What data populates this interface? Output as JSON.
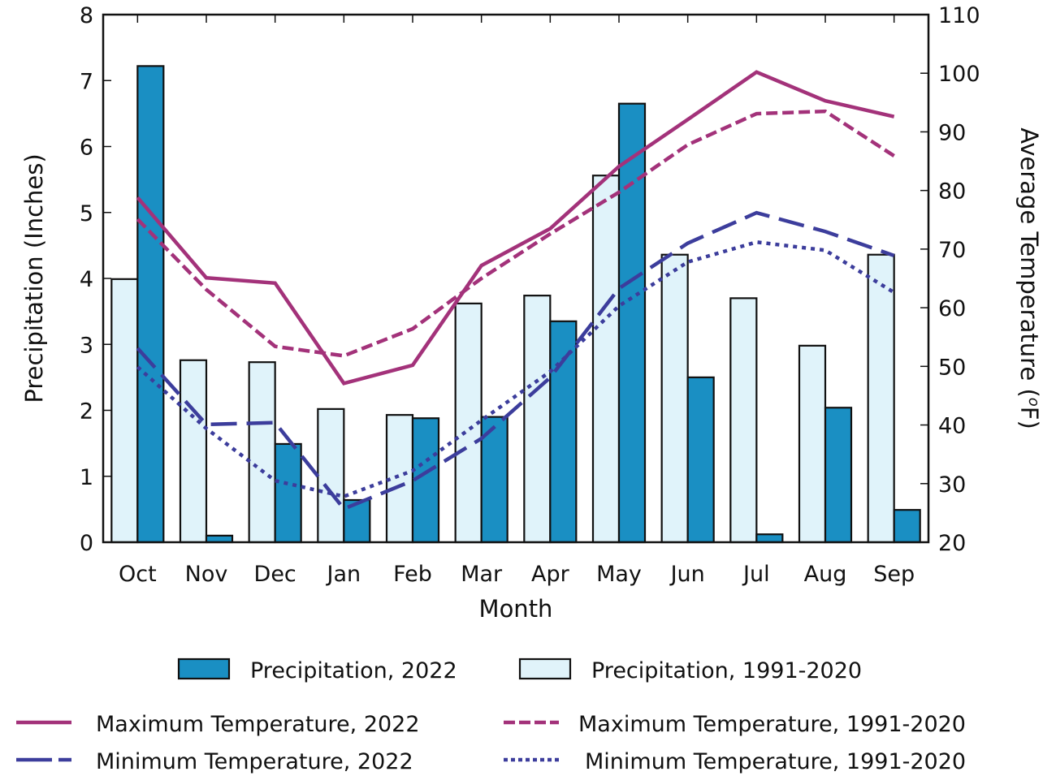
{
  "chart_data": {
    "type": "bar",
    "categories": [
      "Oct",
      "Nov",
      "Dec",
      "Jan",
      "Feb",
      "Mar",
      "Apr",
      "May",
      "Jun",
      "Jul",
      "Aug",
      "Sep"
    ],
    "xlabel": "Month",
    "ylabel": "Precipitation (Inches)",
    "y2label_main": "Average Temperature (",
    "y2label_sup": "o",
    "y2label_end": "F)",
    "ylim": [
      0,
      8
    ],
    "y2lim": [
      20,
      110
    ],
    "yticks": [
      0,
      1,
      2,
      3,
      4,
      5,
      6,
      7,
      8
    ],
    "y2ticks": [
      20,
      30,
      40,
      50,
      60,
      70,
      80,
      90,
      100,
      110
    ],
    "grid": false,
    "bar_series": [
      {
        "name": "Precipitation, 1991-2020",
        "color": "#e0f3fa",
        "values": [
          3.99,
          2.76,
          2.73,
          2.02,
          1.93,
          3.62,
          3.74,
          5.56,
          4.36,
          3.7,
          2.98,
          4.36
        ]
      },
      {
        "name": "Precipitation, 2022",
        "color": "#1a8fc3",
        "values": [
          7.22,
          0.1,
          1.49,
          0.64,
          1.88,
          1.9,
          3.35,
          6.65,
          2.5,
          0.12,
          2.04,
          0.49
        ]
      }
    ],
    "line_series": [
      {
        "name": "Maximum Temperature, 2022",
        "color": "#a3327a",
        "style": "solid",
        "axis": "right",
        "values": [
          78.8,
          65.1,
          64.2,
          47.1,
          50.2,
          67.2,
          73.5,
          84.1,
          92.1,
          100.2,
          95.3,
          92.6
        ]
      },
      {
        "name": "Maximum Temperature, 1991-2020",
        "color": "#a3327a",
        "style": "dashed",
        "axis": "right",
        "values": [
          75.1,
          63.1,
          53.4,
          51.8,
          56.4,
          65.0,
          72.6,
          79.7,
          87.8,
          93.1,
          93.5,
          85.9
        ]
      },
      {
        "name": "Minimum Temperature, 2022",
        "color": "#3c3d9c",
        "style": "longdash",
        "axis": "right",
        "values": [
          53.1,
          40.1,
          40.4,
          25.7,
          30.5,
          37.7,
          48.1,
          63.3,
          71.0,
          76.2,
          73.0,
          68.9
        ]
      },
      {
        "name": "Minimum Temperature, 1991-2020",
        "color": "#3c3d9c",
        "style": "dotted",
        "axis": "right",
        "values": [
          49.9,
          39.4,
          30.5,
          27.8,
          32.2,
          40.8,
          49.1,
          60.3,
          67.8,
          71.2,
          69.8,
          62.6
        ]
      }
    ],
    "legend": {
      "placement": "bottom",
      "entries": [
        {
          "label": "Precipitation, 2022",
          "kind": "bar",
          "color": "#1a8fc3"
        },
        {
          "label": "Precipitation, 1991-2020",
          "kind": "bar",
          "color": "#e0f3fa"
        },
        {
          "label": "Maximum Temperature, 2022",
          "kind": "line",
          "color": "#a3327a",
          "style": "solid"
        },
        {
          "label": "Maximum Temperature, 1991-2020",
          "kind": "line",
          "color": "#a3327a",
          "style": "dashed"
        },
        {
          "label": "Minimum Temperature, 2022",
          "kind": "line",
          "color": "#3c3d9c",
          "style": "longdash"
        },
        {
          "label": "Minimum Temperature, 1991-2020",
          "kind": "line",
          "color": "#3c3d9c",
          "style": "dotted"
        }
      ]
    }
  }
}
